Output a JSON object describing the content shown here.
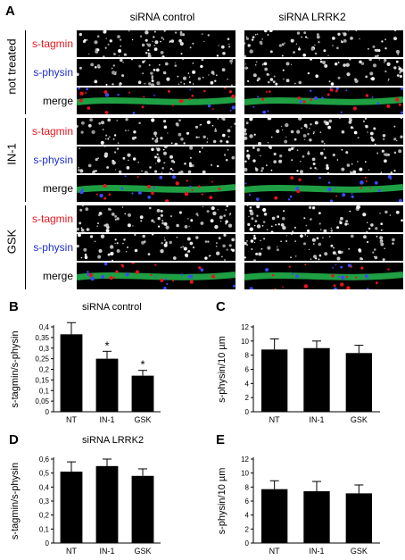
{
  "panel_a": {
    "letter": "A",
    "columns": [
      "siRNA control",
      "siRNA LRRK2"
    ],
    "groups": [
      {
        "label": "not treated"
      },
      {
        "label": "IN-1"
      },
      {
        "label": "GSK"
      }
    ],
    "channels": [
      {
        "label": "s-tagmin",
        "color": "#e8141c"
      },
      {
        "label": "s-physin",
        "color": "#1c2fd0"
      },
      {
        "label": "merge",
        "color": "#000000"
      }
    ]
  },
  "chart_data": [
    {
      "id": "B",
      "type": "bar",
      "letter": "B",
      "title": "siRNA control",
      "ylabel": "s-tagmin/s-physin",
      "categories": [
        "NT",
        "IN-1",
        "GSK"
      ],
      "values": [
        0.365,
        0.25,
        0.17
      ],
      "errors": [
        0.055,
        0.035,
        0.025
      ],
      "significance": [
        "",
        "*",
        "*"
      ],
      "ylim": [
        0,
        0.4
      ],
      "yticks": [
        "0",
        "0,05",
        "0,1",
        "0,15",
        "0,2",
        "0,25",
        "0,3",
        "0,35",
        "0,4"
      ],
      "ytick_values": [
        0,
        0.05,
        0.1,
        0.15,
        0.2,
        0.25,
        0.3,
        0.35,
        0.4
      ]
    },
    {
      "id": "C",
      "type": "bar",
      "letter": "C",
      "title": "",
      "ylabel": "s-physin/10 µm",
      "categories": [
        "NT",
        "IN-1",
        "GSK"
      ],
      "values": [
        8.8,
        9.0,
        8.3
      ],
      "errors": [
        1.5,
        1.0,
        1.1
      ],
      "significance": [
        "",
        "",
        ""
      ],
      "ylim": [
        0,
        12
      ],
      "yticks": [
        "0",
        "2",
        "4",
        "6",
        "8",
        "10",
        "12"
      ],
      "ytick_values": [
        0,
        2,
        4,
        6,
        8,
        10,
        12
      ]
    },
    {
      "id": "D",
      "type": "bar",
      "letter": "D",
      "title": "siRNA LRRK2",
      "ylabel": "s-tagmin/s-physin",
      "categories": [
        "NT",
        "IN-1",
        "GSK"
      ],
      "values": [
        0.51,
        0.55,
        0.48
      ],
      "errors": [
        0.07,
        0.05,
        0.05
      ],
      "significance": [
        "",
        "",
        ""
      ],
      "ylim": [
        0,
        0.6
      ],
      "yticks": [
        "0",
        "0,1",
        "0,2",
        "0,3",
        "0,4",
        "0,5",
        "0,6"
      ],
      "ytick_values": [
        0,
        0.1,
        0.2,
        0.3,
        0.4,
        0.5,
        0.6
      ]
    },
    {
      "id": "E",
      "type": "bar",
      "letter": "E",
      "title": "",
      "ylabel": "s-physin/10 µm",
      "categories": [
        "NT",
        "IN-1",
        "GSK"
      ],
      "values": [
        7.7,
        7.4,
        7.1
      ],
      "errors": [
        1.2,
        1.4,
        1.2
      ],
      "significance": [
        "",
        "",
        ""
      ],
      "ylim": [
        0,
        12
      ],
      "yticks": [
        "0",
        "2",
        "4",
        "6",
        "8",
        "10",
        "12"
      ],
      "ytick_values": [
        0,
        2,
        4,
        6,
        8,
        10,
        12
      ]
    }
  ]
}
